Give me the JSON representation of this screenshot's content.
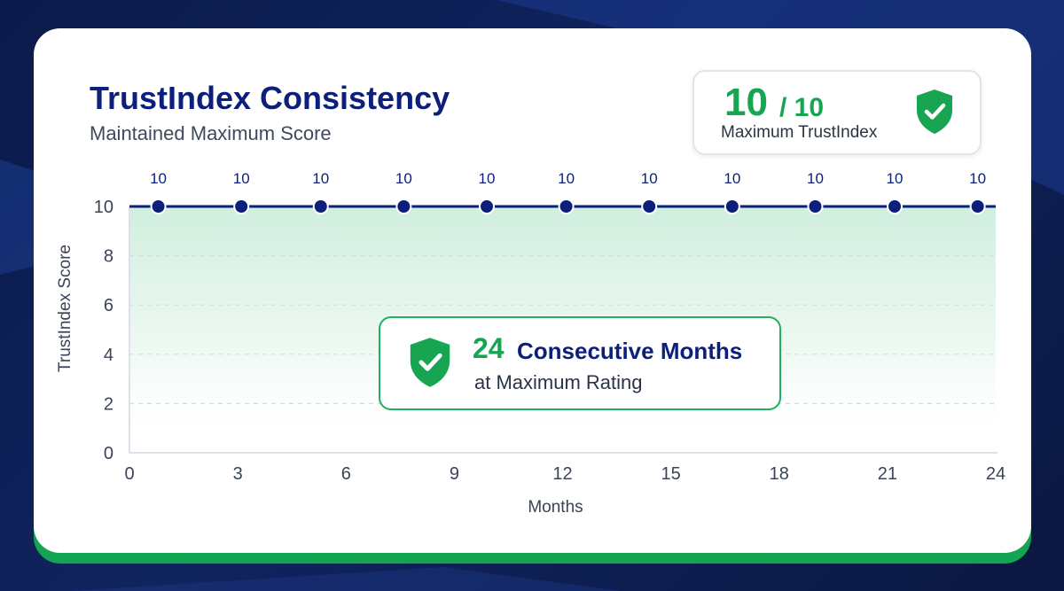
{
  "colors": {
    "navy": "#0c1f7a",
    "green": "#18a552",
    "card": "#ffffff",
    "background": "#0b1a4a"
  },
  "header": {
    "title": "TrustIndex Consistency",
    "subtitle": "Maintained Maximum Score"
  },
  "score_card": {
    "score": "10",
    "out_of": "/ 10",
    "label": "Maximum TrustIndex",
    "icon": "shield-check-icon"
  },
  "streak": {
    "count": "24",
    "text": "Consecutive Months",
    "sub": "at Maximum Rating",
    "icon": "shield-check-icon"
  },
  "chart_data": {
    "type": "line",
    "xlabel": "Months",
    "ylabel": "TrustIndex Score",
    "xlim": [
      0,
      24
    ],
    "ylim": [
      0,
      10
    ],
    "x_ticks": [
      0,
      3,
      6,
      9,
      12,
      15,
      18,
      21,
      24
    ],
    "y_ticks": [
      0,
      2,
      4,
      6,
      8,
      10
    ],
    "grid": "horizontal dashed",
    "series": [
      {
        "x": [
          0.8,
          3.1,
          5.3,
          7.6,
          9.9,
          12.1,
          14.4,
          16.7,
          19.0,
          21.2,
          23.5
        ],
        "values": [
          10,
          10,
          10,
          10,
          10,
          10,
          10,
          10,
          10,
          10,
          10
        ],
        "data_labels": [
          "10",
          "10",
          "10",
          "10",
          "10",
          "10",
          "10",
          "10",
          "10",
          "10",
          "10"
        ]
      }
    ]
  }
}
